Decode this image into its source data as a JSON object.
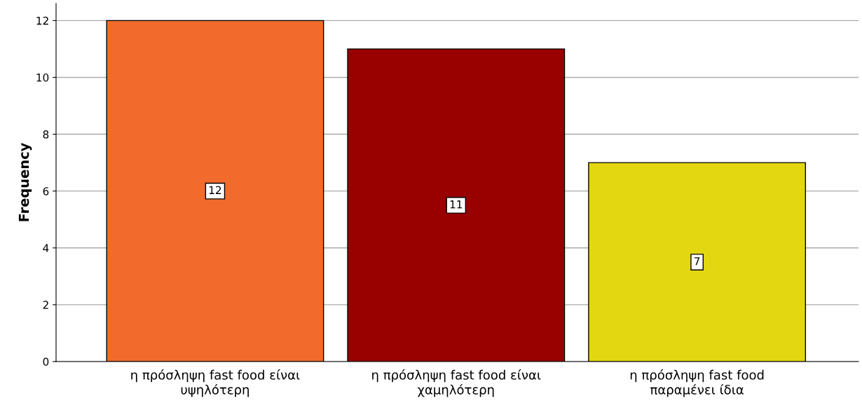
{
  "chart_data": {
    "type": "bar",
    "ylabel": "Frequency",
    "categories": [
      "η πρόσληψη fast food είναι\nυψηλότερη",
      "η πρόσληψη fast food είναι\nχαμηλότερη",
      "η πρόσληψη fast food\nπαραμένει ίδια"
    ],
    "values": [
      12,
      11,
      7
    ],
    "colors": [
      "#f26b2c",
      "#990000",
      "#e3d712"
    ],
    "ylim": [
      0,
      12.6
    ],
    "yticks": [
      0,
      2,
      4,
      6,
      8,
      10,
      12
    ],
    "grid": "y",
    "data_labels": true
  }
}
